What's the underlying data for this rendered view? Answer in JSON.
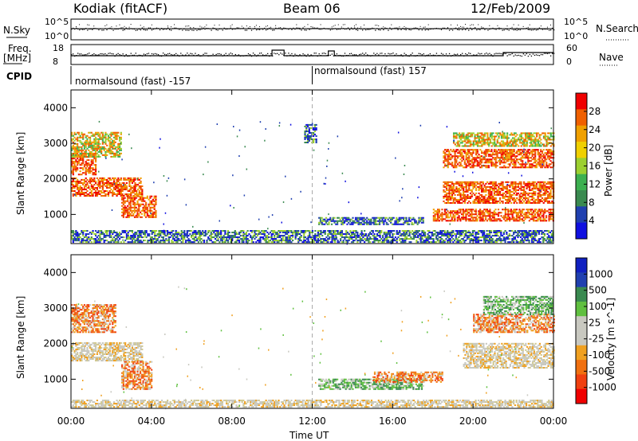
{
  "header": {
    "station": "Kodiak (fitACF)",
    "beam": "Beam 06",
    "date": "12/Feb/2009"
  },
  "side_labels": {
    "nsky": "N.Sky",
    "freq": "Freq.",
    "freq_unit": "[MHz]",
    "cpid": "CPID",
    "nsearch": "N.Search",
    "nave": "Nave",
    "nsky_ticks": [
      "10^5",
      "10^0"
    ],
    "nsearch_ticks": [
      "10^5",
      "10^0"
    ],
    "freq_ticks": [
      "18",
      "8"
    ],
    "nave_ticks": [
      "60",
      "0"
    ]
  },
  "cpid_segments": [
    {
      "label": "normalsound (fast) -157",
      "start_hour": 0,
      "end_hour": 12
    },
    {
      "label": "normalsound (fast) 157",
      "start_hour": 12,
      "end_hour": 24
    }
  ],
  "colors": {
    "power_scale": [
      "#1010e0",
      "#2040b0",
      "#3a8a50",
      "#3cb050",
      "#9cd030",
      "#f0d000",
      "#f0a000",
      "#f06000",
      "#f00000"
    ],
    "velocity_scale": [
      "#f00000",
      "#f04010",
      "#f07010",
      "#f0a020",
      "#c8c8c0",
      "#c8c8c0",
      "#60c040",
      "#3a8a50",
      "#2040b0",
      "#1020c0"
    ]
  },
  "chart_data": [
    {
      "type": "heatmap",
      "title": "",
      "xlabel": "Time UT",
      "ylabel": "Slant Range [km]",
      "xlim_hours": [
        0,
        24
      ],
      "ylim": [
        180,
        4500
      ],
      "x_ticks": [
        "00:00",
        "04:00",
        "08:00",
        "12:00",
        "16:00",
        "20:00",
        "00:00"
      ],
      "y_ticks": [
        1000,
        2000,
        3000,
        4000
      ],
      "colorbar": {
        "label": "Power [dB]",
        "ticks": [
          "28",
          "24",
          "20",
          "16",
          "12",
          "8",
          "4"
        ],
        "range": [
          0,
          30
        ]
      },
      "regions": [
        {
          "t": [
            0.0,
            1.2
          ],
          "r": [
            2100,
            2700
          ],
          "level": "high"
        },
        {
          "t": [
            0.0,
            3.5
          ],
          "r": [
            1500,
            2000
          ],
          "level": "high"
        },
        {
          "t": [
            2.5,
            4.2
          ],
          "r": [
            900,
            1500
          ],
          "level": "high"
        },
        {
          "t": [
            0.0,
            2.5
          ],
          "r": [
            2600,
            3300
          ],
          "level": "mid"
        },
        {
          "t": [
            12.3,
            17.5
          ],
          "r": [
            700,
            900
          ],
          "level": "low"
        },
        {
          "t": [
            0.0,
            24.0
          ],
          "r": [
            200,
            550
          ],
          "level": "low"
        },
        {
          "t": [
            18.0,
            24.0
          ],
          "r": [
            800,
            1150
          ],
          "level": "high"
        },
        {
          "t": [
            18.5,
            24.0
          ],
          "r": [
            1300,
            1900
          ],
          "level": "high"
        },
        {
          "t": [
            18.5,
            24.0
          ],
          "r": [
            2300,
            2800
          ],
          "level": "high"
        },
        {
          "t": [
            19.0,
            24.0
          ],
          "r": [
            2900,
            3300
          ],
          "level": "mid"
        },
        {
          "t": [
            11.6,
            12.2
          ],
          "r": [
            3000,
            3500
          ],
          "level": "low"
        }
      ]
    },
    {
      "type": "heatmap",
      "title": "",
      "xlabel": "Time UT",
      "ylabel": "Slant Range [km]",
      "xlim_hours": [
        0,
        24
      ],
      "ylim": [
        180,
        4500
      ],
      "x_ticks": [
        "00:00",
        "04:00",
        "08:00",
        "12:00",
        "16:00",
        "20:00",
        "00:00"
      ],
      "y_ticks": [
        1000,
        2000,
        3000,
        4000
      ],
      "colorbar": {
        "label": "Velocity [m s^-1]",
        "ticks": [
          "1000",
          "500",
          "100",
          "25",
          "-25",
          "-100",
          "-500",
          "-1000"
        ],
        "range": [
          -1000,
          1000
        ]
      },
      "regions": [
        {
          "t": [
            0.0,
            2.2
          ],
          "r": [
            2300,
            3100
          ],
          "level": "neg"
        },
        {
          "t": [
            0.0,
            3.5
          ],
          "r": [
            1500,
            2000
          ],
          "level": "ground"
        },
        {
          "t": [
            2.5,
            4.0
          ],
          "r": [
            700,
            1500
          ],
          "level": "neg"
        },
        {
          "t": [
            0.0,
            24.0
          ],
          "r": [
            200,
            420
          ],
          "level": "ground"
        },
        {
          "t": [
            12.3,
            17.5
          ],
          "r": [
            700,
            1000
          ],
          "level": "pos"
        },
        {
          "t": [
            15.0,
            18.5
          ],
          "r": [
            900,
            1200
          ],
          "level": "neg"
        },
        {
          "t": [
            19.5,
            24.0
          ],
          "r": [
            1300,
            2000
          ],
          "level": "ground"
        },
        {
          "t": [
            20.0,
            24.0
          ],
          "r": [
            2300,
            2800
          ],
          "level": "neg"
        },
        {
          "t": [
            20.5,
            24.0
          ],
          "r": [
            2800,
            3300
          ],
          "level": "pos"
        }
      ]
    }
  ]
}
